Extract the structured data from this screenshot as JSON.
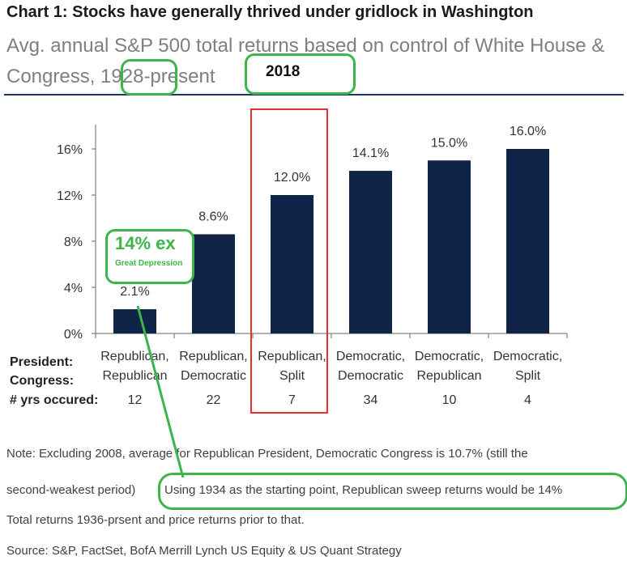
{
  "header": {
    "title": "Chart 1: Stocks have generally thrived under gridlock in Washington",
    "subtitle": "Avg. annual S&P 500 total returns based on control of White House & Congress, 1928-present"
  },
  "chart_data": {
    "type": "bar",
    "categories": [
      [
        "Republican,",
        "Republican"
      ],
      [
        "Republican,",
        "Democratic"
      ],
      [
        "Republican,",
        "Split"
      ],
      [
        "Democratic,",
        "Democratic"
      ],
      [
        "Democratic,",
        "Republican"
      ],
      [
        "Democratic,",
        "Split"
      ]
    ],
    "values": [
      2.1,
      8.6,
      12.0,
      14.1,
      15.0,
      16.0
    ],
    "data_labels": [
      "2.1%",
      "8.6%",
      "12.0%",
      "14.1%",
      "15.0%",
      "16.0%"
    ],
    "ylim": [
      0,
      16
    ],
    "yticks": [
      0,
      4,
      8,
      12,
      16
    ],
    "ytick_labels": [
      "0%",
      "4%",
      "8%",
      "12%",
      "16%"
    ],
    "row_labels": [
      "President:",
      "Congress:",
      "# yrs occured:"
    ],
    "years": [
      "12",
      "22",
      "7",
      "34",
      "10",
      "4"
    ],
    "highlight_index": 2,
    "bar_color": "#0f2447",
    "grid": false
  },
  "notes": {
    "line1": "Note: Excluding 2008, average for Republican President, Democratic Congress is 10.7% (still the",
    "line2a": "second-weakest period)",
    "line2b": "Using 1934 as the starting point, Republican sweep returns would be 14%",
    "line3": "Total returns 1936-prsent and price returns prior to that.",
    "source": "Source: S&P, FactSet, BofA Merrill Lynch US Equity & US Quant Strategy"
  },
  "annotations": {
    "year_2018": "2018",
    "ex_depression_big": "14% ex",
    "ex_depression_small": "Great Depression",
    "accent": "#3cb54a",
    "highlight_border": "#e8312f"
  }
}
